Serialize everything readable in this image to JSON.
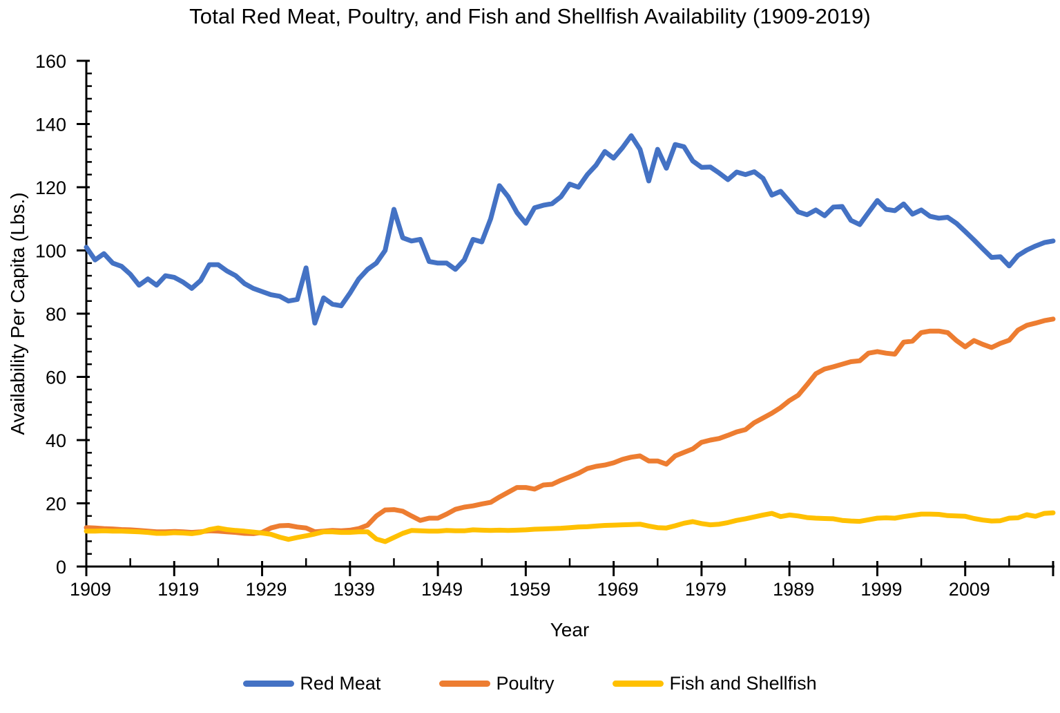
{
  "page": {
    "background": "#ffffff"
  },
  "chart_data": {
    "type": "line",
    "title": "Total Red Meat, Poultry, and Fish and Shellfish Availability (1909-2019)",
    "xlabel": "Year",
    "ylabel": "Availability Per Capita (Lbs.)",
    "x_range": [
      1909,
      2019
    ],
    "x_step": 1,
    "ylim": [
      0,
      160
    ],
    "y_ticks": [
      0,
      20,
      40,
      60,
      80,
      100,
      120,
      140,
      160
    ],
    "y_minor_step": 4,
    "x_ticks": [
      1909,
      1919,
      1929,
      1939,
      1949,
      1959,
      1969,
      1979,
      1989,
      1999,
      2009
    ],
    "x_minor_ticks": [
      1914,
      1924,
      1934,
      1944,
      1954,
      1964,
      1974,
      1984,
      1994,
      2004,
      2014
    ],
    "x_axis_end_tick": 2019,
    "grid": "off",
    "legend_position": "bottom",
    "axis_color": "#000000",
    "series": [
      {
        "name": "Red Meat",
        "color": "#4472C4",
        "values": [
          101,
          97,
          99,
          96,
          95,
          92.5,
          89,
          91,
          89,
          92,
          91.5,
          90,
          88,
          90.5,
          95.5,
          95.5,
          93.5,
          92,
          89.5,
          88,
          87,
          86,
          85.5,
          84,
          84.5,
          94.5,
          77,
          85,
          83,
          82.5,
          86.5,
          91,
          94,
          96,
          100,
          113,
          104,
          103,
          103.5,
          96.5,
          96,
          96,
          94,
          97,
          103.5,
          102.7,
          110,
          120.5,
          117,
          112,
          108.6,
          113.5,
          114.3,
          114.8,
          117,
          121,
          120,
          124,
          127,
          131.3,
          129.2,
          132.5,
          136.3,
          132,
          122,
          132,
          126,
          133.5,
          132.8,
          128.3,
          126.3,
          126.4,
          124.5,
          122.4,
          124.8,
          124,
          124.9,
          122.8,
          117.5,
          118.7,
          115.5,
          112.2,
          111.3,
          112.8,
          111,
          113.7,
          113.9,
          109.5,
          108.2,
          112,
          115.8,
          113,
          112.6,
          114.7,
          111.5,
          112.8,
          110.8,
          110.2,
          110.5,
          108.6,
          106,
          103.3,
          100.5,
          97.8,
          98,
          95.1,
          98.4,
          100.1,
          101.4,
          102.5,
          103
        ]
      },
      {
        "name": "Poultry",
        "color": "#ED7D31",
        "values": [
          12.3,
          12.2,
          12,
          11.9,
          11.7,
          11.6,
          11.4,
          11.2,
          11,
          11,
          11.1,
          11,
          10.8,
          11,
          11.3,
          11.2,
          11,
          10.8,
          10.5,
          10.4,
          10.8,
          12.2,
          12.9,
          13,
          12.5,
          12.2,
          11,
          11.2,
          11.4,
          11.3,
          11.5,
          12,
          13.1,
          16,
          17.9,
          18,
          17.5,
          16,
          14.6,
          15.3,
          15.3,
          16.6,
          18.1,
          18.8,
          19.2,
          19.8,
          20.3,
          22,
          23.5,
          25,
          25,
          24.5,
          25.8,
          26,
          27.3,
          28.4,
          29.5,
          31,
          31.7,
          32.1,
          32.8,
          33.9,
          34.6,
          35,
          33.4,
          33.4,
          32.4,
          35,
          36.1,
          37.2,
          39.3,
          40,
          40.5,
          41.5,
          42.6,
          43.3,
          45.5,
          47,
          48.5,
          50.3,
          52.5,
          54.2,
          57.5,
          61,
          62.5,
          63.2,
          64,
          64.8,
          65.1,
          67.5,
          68,
          67.5,
          67.2,
          71,
          71.3,
          74,
          74.5,
          74.5,
          74,
          71.5,
          69.5,
          71.5,
          70.3,
          69.3,
          70.6,
          71.6,
          74.8,
          76.3,
          77,
          77.8,
          78.3
        ]
      },
      {
        "name": "Fish and Shellfish",
        "color": "#FFC000",
        "values": [
          11.2,
          11.2,
          11.3,
          11.2,
          11.2,
          11.1,
          11,
          10.8,
          10.5,
          10.5,
          10.7,
          10.6,
          10.4,
          10.8,
          11.7,
          12.2,
          11.7,
          11.4,
          11.2,
          10.9,
          10.6,
          10.2,
          9.3,
          8.6,
          9.2,
          9.7,
          10.3,
          11,
          11,
          10.8,
          10.8,
          11,
          11,
          8.7,
          7.9,
          9.2,
          10.5,
          11.4,
          11.3,
          11.2,
          11.2,
          11.4,
          11.3,
          11.3,
          11.6,
          11.5,
          11.4,
          11.5,
          11.4,
          11.5,
          11.6,
          11.8,
          11.9,
          12,
          12.1,
          12.3,
          12.5,
          12.6,
          12.8,
          13,
          13.1,
          13.2,
          13.3,
          13.4,
          12.8,
          12.3,
          12.2,
          12.9,
          13.7,
          14.2,
          13.6,
          13.2,
          13.4,
          13.9,
          14.6,
          15.1,
          15.7,
          16.3,
          16.8,
          15.8,
          16.3,
          16,
          15.5,
          15.3,
          15.2,
          15.1,
          14.6,
          14.4,
          14.3,
          14.8,
          15.3,
          15.4,
          15.3,
          15.8,
          16.2,
          16.6,
          16.6,
          16.5,
          16.1,
          16,
          15.9,
          15.2,
          14.7,
          14.4,
          14.5,
          15.3,
          15.4,
          16.4,
          15.9,
          16.8,
          17
        ]
      }
    ]
  }
}
